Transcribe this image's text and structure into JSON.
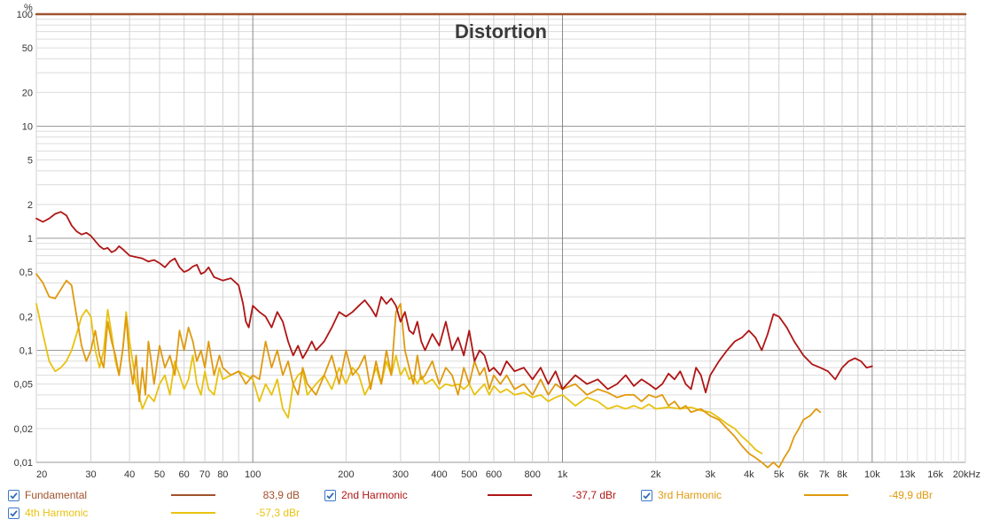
{
  "chart_data": {
    "type": "line",
    "title": "Distortion",
    "ylabel": "%",
    "xunit": "kHz",
    "xscale": "log",
    "yscale": "log",
    "xlim": [
      20,
      20000
    ],
    "ylim": [
      0.01,
      100
    ],
    "x_ticks": [
      {
        "v": 20,
        "label": "20"
      },
      {
        "v": 30,
        "label": "30"
      },
      {
        "v": 40,
        "label": "40"
      },
      {
        "v": 50,
        "label": "50"
      },
      {
        "v": 60,
        "label": "60"
      },
      {
        "v": 70,
        "label": "70"
      },
      {
        "v": 80,
        "label": "80"
      },
      {
        "v": 100,
        "label": "100"
      },
      {
        "v": 200,
        "label": "200"
      },
      {
        "v": 300,
        "label": "300"
      },
      {
        "v": 400,
        "label": "400"
      },
      {
        "v": 500,
        "label": "500"
      },
      {
        "v": 600,
        "label": "600"
      },
      {
        "v": 800,
        "label": "800"
      },
      {
        "v": 1000,
        "label": "1k"
      },
      {
        "v": 2000,
        "label": "2k"
      },
      {
        "v": 3000,
        "label": "3k"
      },
      {
        "v": 4000,
        "label": "4k"
      },
      {
        "v": 5000,
        "label": "5k"
      },
      {
        "v": 6000,
        "label": "6k"
      },
      {
        "v": 7000,
        "label": "7k"
      },
      {
        "v": 8000,
        "label": "8k"
      },
      {
        "v": 10000,
        "label": "10k"
      },
      {
        "v": 13000,
        "label": "13k"
      },
      {
        "v": 16000,
        "label": "16k"
      },
      {
        "v": 20000,
        "label": "20kHz"
      }
    ],
    "y_ticks": [
      {
        "v": 100,
        "label": "100"
      },
      {
        "v": 50,
        "label": "50"
      },
      {
        "v": 20,
        "label": "20"
      },
      {
        "v": 10,
        "label": "10"
      },
      {
        "v": 5,
        "label": "5"
      },
      {
        "v": 2,
        "label": "2"
      },
      {
        "v": 1,
        "label": "1"
      },
      {
        "v": 0.5,
        "label": "0,5"
      },
      {
        "v": 0.2,
        "label": "0,2"
      },
      {
        "v": 0.1,
        "label": "0,1"
      },
      {
        "v": 0.05,
        "label": "0,05"
      },
      {
        "v": 0.02,
        "label": "0,02"
      },
      {
        "v": 0.01,
        "label": "0,01"
      }
    ],
    "series": [
      {
        "name": "Fundamental",
        "value": "83,9 dB",
        "color": "#a0522d",
        "checked": true,
        "x": [
          20,
          20000
        ],
        "y": [
          100,
          100
        ]
      },
      {
        "name": "2nd Harmonic",
        "value": "-37,7 dBr",
        "color": "#b01515",
        "checked": true,
        "x": [
          20,
          21,
          22,
          23,
          24,
          25,
          26,
          27,
          28,
          29,
          30,
          32,
          33,
          34,
          35,
          36,
          37,
          38,
          40,
          42,
          44,
          46,
          48,
          50,
          52,
          54,
          56,
          58,
          60,
          62,
          64,
          66,
          68,
          70,
          72,
          75,
          80,
          85,
          90,
          93,
          95,
          97,
          100,
          105,
          110,
          115,
          120,
          125,
          130,
          135,
          140,
          145,
          150,
          155,
          160,
          170,
          180,
          190,
          200,
          210,
          220,
          230,
          240,
          250,
          260,
          270,
          280,
          290,
          300,
          310,
          320,
          330,
          340,
          350,
          360,
          380,
          400,
          420,
          440,
          460,
          480,
          500,
          520,
          540,
          560,
          580,
          600,
          630,
          660,
          700,
          750,
          800,
          850,
          900,
          950,
          1000,
          1100,
          1200,
          1300,
          1400,
          1500,
          1600,
          1700,
          1800,
          1900,
          2000,
          2100,
          2200,
          2300,
          2400,
          2500,
          2600,
          2700,
          2800,
          2900,
          3000,
          3200,
          3400,
          3600,
          3800,
          4000,
          4200,
          4400,
          4600,
          4800,
          5000,
          5300,
          5600,
          6000,
          6400,
          6800,
          7200,
          7600,
          8000,
          8400,
          8800,
          9200,
          9600,
          10000
        ],
        "y": [
          1.5,
          1.4,
          1.5,
          1.65,
          1.72,
          1.6,
          1.3,
          1.15,
          1.08,
          1.12,
          1.05,
          0.85,
          0.8,
          0.82,
          0.75,
          0.78,
          0.85,
          0.8,
          0.7,
          0.68,
          0.66,
          0.62,
          0.64,
          0.6,
          0.55,
          0.62,
          0.66,
          0.55,
          0.5,
          0.52,
          0.56,
          0.58,
          0.48,
          0.5,
          0.55,
          0.45,
          0.42,
          0.44,
          0.38,
          0.26,
          0.18,
          0.16,
          0.25,
          0.22,
          0.2,
          0.16,
          0.22,
          0.18,
          0.12,
          0.09,
          0.11,
          0.085,
          0.1,
          0.12,
          0.1,
          0.12,
          0.16,
          0.22,
          0.2,
          0.22,
          0.25,
          0.28,
          0.24,
          0.2,
          0.3,
          0.26,
          0.29,
          0.25,
          0.18,
          0.22,
          0.15,
          0.14,
          0.18,
          0.12,
          0.1,
          0.14,
          0.11,
          0.18,
          0.1,
          0.13,
          0.09,
          0.15,
          0.08,
          0.1,
          0.09,
          0.065,
          0.07,
          0.06,
          0.08,
          0.065,
          0.07,
          0.055,
          0.07,
          0.05,
          0.065,
          0.045,
          0.06,
          0.05,
          0.055,
          0.045,
          0.05,
          0.06,
          0.048,
          0.055,
          0.05,
          0.045,
          0.05,
          0.062,
          0.055,
          0.065,
          0.05,
          0.045,
          0.07,
          0.06,
          0.042,
          0.06,
          0.08,
          0.1,
          0.12,
          0.13,
          0.15,
          0.13,
          0.1,
          0.14,
          0.21,
          0.2,
          0.16,
          0.12,
          0.09,
          0.075,
          0.07,
          0.065,
          0.055,
          0.07,
          0.08,
          0.085,
          0.08,
          0.07,
          0.072
        ]
      },
      {
        "name": "3rd Harmonic",
        "value": "-49,9 dBr",
        "color": "#df9a10",
        "checked": true,
        "x": [
          20,
          21,
          22,
          23,
          24,
          25,
          26,
          27,
          28,
          29,
          30,
          31,
          32,
          33,
          34,
          35,
          36,
          37,
          38,
          39,
          40,
          41,
          42,
          43,
          44,
          45,
          46,
          47,
          48,
          50,
          52,
          54,
          56,
          58,
          60,
          62,
          64,
          66,
          68,
          70,
          72,
          75,
          78,
          80,
          85,
          90,
          95,
          100,
          105,
          110,
          115,
          120,
          125,
          130,
          135,
          140,
          145,
          150,
          160,
          170,
          180,
          190,
          200,
          210,
          220,
          230,
          240,
          250,
          260,
          270,
          280,
          290,
          300,
          310,
          320,
          330,
          340,
          350,
          360,
          380,
          400,
          420,
          440,
          460,
          480,
          500,
          520,
          540,
          560,
          580,
          600,
          630,
          660,
          700,
          750,
          800,
          850,
          900,
          950,
          1000,
          1100,
          1200,
          1300,
          1400,
          1500,
          1600,
          1700,
          1800,
          1900,
          2000,
          2100,
          2200,
          2300,
          2400,
          2500,
          2600,
          2800,
          3000,
          3200,
          3400,
          3600,
          3800,
          4000,
          4200,
          4400,
          4600,
          4800,
          5000,
          5200,
          5400,
          5600,
          5800,
          6000,
          6300,
          6600,
          6800
        ],
        "y": [
          0.48,
          0.4,
          0.3,
          0.29,
          0.35,
          0.42,
          0.38,
          0.2,
          0.11,
          0.08,
          0.1,
          0.15,
          0.09,
          0.07,
          0.18,
          0.12,
          0.09,
          0.06,
          0.1,
          0.2,
          0.08,
          0.05,
          0.09,
          0.035,
          0.07,
          0.04,
          0.12,
          0.08,
          0.05,
          0.11,
          0.07,
          0.09,
          0.06,
          0.15,
          0.1,
          0.16,
          0.12,
          0.08,
          0.1,
          0.07,
          0.12,
          0.06,
          0.09,
          0.07,
          0.06,
          0.065,
          0.05,
          0.06,
          0.055,
          0.12,
          0.07,
          0.1,
          0.06,
          0.08,
          0.05,
          0.04,
          0.07,
          0.05,
          0.04,
          0.06,
          0.09,
          0.05,
          0.1,
          0.06,
          0.07,
          0.09,
          0.045,
          0.08,
          0.05,
          0.1,
          0.06,
          0.22,
          0.26,
          0.1,
          0.07,
          0.05,
          0.09,
          0.055,
          0.06,
          0.08,
          0.05,
          0.07,
          0.06,
          0.04,
          0.07,
          0.05,
          0.08,
          0.06,
          0.07,
          0.045,
          0.06,
          0.05,
          0.06,
          0.045,
          0.05,
          0.04,
          0.055,
          0.04,
          0.05,
          0.045,
          0.05,
          0.04,
          0.045,
          0.042,
          0.038,
          0.04,
          0.04,
          0.035,
          0.04,
          0.038,
          0.04,
          0.032,
          0.035,
          0.03,
          0.032,
          0.028,
          0.03,
          0.026,
          0.024,
          0.02,
          0.017,
          0.014,
          0.012,
          0.011,
          0.01,
          0.009,
          0.01,
          0.009,
          0.011,
          0.013,
          0.017,
          0.02,
          0.024,
          0.026,
          0.03,
          0.028
        ]
      },
      {
        "name": "4th Harmonic",
        "value": "-57,3 dBr",
        "color": "#e8c210",
        "checked": true,
        "x": [
          20,
          21,
          22,
          23,
          24,
          25,
          26,
          27,
          28,
          29,
          30,
          31,
          32,
          33,
          34,
          35,
          36,
          37,
          38,
          39,
          40,
          42,
          44,
          46,
          48,
          50,
          52,
          54,
          56,
          58,
          60,
          62,
          64,
          66,
          68,
          70,
          72,
          75,
          78,
          80,
          85,
          90,
          95,
          100,
          105,
          110,
          115,
          120,
          125,
          130,
          135,
          140,
          145,
          150,
          160,
          170,
          180,
          190,
          200,
          210,
          220,
          230,
          240,
          250,
          260,
          270,
          280,
          290,
          300,
          310,
          320,
          330,
          340,
          350,
          360,
          380,
          400,
          420,
          440,
          460,
          480,
          500,
          520,
          540,
          560,
          580,
          600,
          630,
          660,
          700,
          750,
          800,
          850,
          900,
          950,
          1000,
          1100,
          1200,
          1300,
          1400,
          1500,
          1600,
          1700,
          1800,
          1900,
          2000,
          2200,
          2400,
          2600,
          2800,
          3000,
          3200,
          3400,
          3600,
          3800,
          4000,
          4200,
          4400
        ],
        "y": [
          0.26,
          0.14,
          0.08,
          0.065,
          0.07,
          0.08,
          0.1,
          0.14,
          0.2,
          0.23,
          0.2,
          0.1,
          0.07,
          0.1,
          0.23,
          0.14,
          0.08,
          0.06,
          0.1,
          0.22,
          0.12,
          0.05,
          0.03,
          0.04,
          0.035,
          0.05,
          0.06,
          0.04,
          0.08,
          0.06,
          0.045,
          0.055,
          0.09,
          0.05,
          0.04,
          0.065,
          0.045,
          0.04,
          0.07,
          0.055,
          0.06,
          0.065,
          0.06,
          0.055,
          0.035,
          0.05,
          0.04,
          0.055,
          0.03,
          0.025,
          0.05,
          0.06,
          0.065,
          0.04,
          0.05,
          0.06,
          0.045,
          0.07,
          0.05,
          0.07,
          0.06,
          0.04,
          0.05,
          0.07,
          0.05,
          0.08,
          0.06,
          0.09,
          0.06,
          0.07,
          0.055,
          0.06,
          0.05,
          0.06,
          0.05,
          0.055,
          0.045,
          0.05,
          0.048,
          0.05,
          0.045,
          0.05,
          0.04,
          0.045,
          0.05,
          0.04,
          0.048,
          0.042,
          0.045,
          0.04,
          0.042,
          0.038,
          0.04,
          0.035,
          0.038,
          0.04,
          0.032,
          0.038,
          0.035,
          0.03,
          0.032,
          0.03,
          0.032,
          0.03,
          0.033,
          0.03,
          0.031,
          0.03,
          0.031,
          0.029,
          0.028,
          0.025,
          0.022,
          0.02,
          0.017,
          0.015,
          0.013,
          0.012
        ]
      }
    ],
    "grid": true,
    "legend_position": "bottom"
  }
}
